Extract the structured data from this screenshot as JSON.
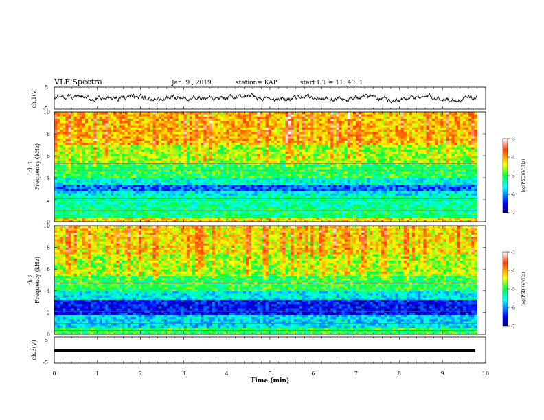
{
  "header": {
    "title": "VLF Spectra",
    "date": "Jan. 9 , 2019",
    "station": "station= KAP",
    "start": "start  UT =   11: 40: 1"
  },
  "chart_data": [
    {
      "type": "line",
      "name": "ch1-waveform",
      "ylabel": "ch.1(V)",
      "ylim": [
        -5,
        5
      ],
      "xlim": [
        0,
        10
      ],
      "y_ticks": [
        "5",
        "-5"
      ],
      "description_values": {
        "typical_range": [
          -1.5,
          1.5
        ]
      }
    },
    {
      "type": "heatmap",
      "name": "ch1-spectrogram",
      "ylabel": "ch.1\nFrequency  (kHz)",
      "ylim": [
        0,
        10
      ],
      "xlim": [
        0,
        9.8
      ],
      "y_ticks": [
        "0",
        "2",
        "4",
        "6",
        "8",
        "10"
      ],
      "bands": [
        {
          "f": [
            0.0,
            0.4
          ],
          "level": -4.3
        },
        {
          "f": [
            0.4,
            1.4
          ],
          "level": -5.2
        },
        {
          "f": [
            1.4,
            2.5
          ],
          "level": -5.3
        },
        {
          "f": [
            2.5,
            2.8
          ],
          "level": -5.6
        },
        {
          "f": [
            2.8,
            3.4
          ],
          "level": -6.2
        },
        {
          "f": [
            3.4,
            4.0
          ],
          "level": -5.5
        },
        {
          "f": [
            4.0,
            5.4
          ],
          "level": -5.0
        },
        {
          "f": [
            5.4,
            7.0
          ],
          "level": -4.6
        },
        {
          "f": [
            7.0,
            10.0
          ],
          "level": -4.1
        }
      ],
      "colorbar": {
        "label": "log(PSD)(V²/Hz)",
        "range": [
          -7,
          -3
        ],
        "ticks": [
          "-3",
          "-4",
          "-5",
          "-6",
          "-7"
        ]
      }
    },
    {
      "type": "heatmap",
      "name": "ch2-spectrogram",
      "ylabel": "ch.2\nFrequency  (kHz)",
      "ylim": [
        0,
        10
      ],
      "xlim": [
        0,
        9.8
      ],
      "y_ticks": [
        "0",
        "2",
        "4",
        "6",
        "8",
        "10"
      ],
      "bands": [
        {
          "f": [
            0.0,
            0.6
          ],
          "level": -5.0
        },
        {
          "f": [
            0.6,
            1.8
          ],
          "level": -5.7
        },
        {
          "f": [
            1.8,
            3.2
          ],
          "level": -6.5
        },
        {
          "f": [
            3.2,
            4.0
          ],
          "level": -5.6
        },
        {
          "f": [
            4.0,
            5.5
          ],
          "level": -5.0
        },
        {
          "f": [
            5.5,
            7.5
          ],
          "level": -4.6
        },
        {
          "f": [
            7.5,
            10.0
          ],
          "level": -4.3
        }
      ],
      "colorbar": {
        "label": "log(PSD)(V²/Hz)",
        "range": [
          -7,
          -3
        ],
        "ticks": [
          "-3",
          "-4",
          "-5",
          "-6",
          "-7"
        ]
      }
    },
    {
      "type": "line",
      "name": "ch3-waveform",
      "ylabel": "ch.3(V)",
      "ylim": [
        -5,
        5
      ],
      "xlim": [
        0,
        10
      ],
      "y_ticks": [
        "5",
        "-5"
      ],
      "x": [
        0,
        9.8
      ],
      "y": [
        0,
        0
      ]
    }
  ],
  "xaxis": {
    "label": "Time  (min)",
    "ticks": [
      "0",
      "1",
      "2",
      "3",
      "4",
      "5",
      "6",
      "7",
      "8",
      "9",
      "10"
    ]
  }
}
